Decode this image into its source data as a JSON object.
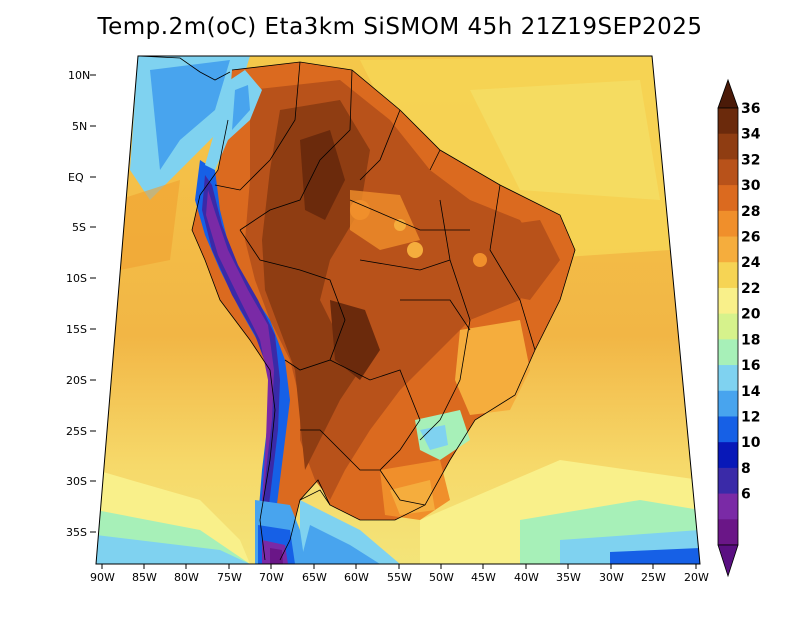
{
  "title": "Temp.2m(oC) Eta3km SiSMOM 45h 21Z19SEP2025",
  "map": {
    "lat_labels": [
      "10N",
      "5N",
      "EQ",
      "5S",
      "10S",
      "15S",
      "20S",
      "25S",
      "30S",
      "35S"
    ],
    "lon_labels": [
      "90W",
      "85W",
      "80W",
      "75W",
      "70W",
      "65W",
      "60W",
      "55W",
      "50W",
      "45W",
      "40W",
      "35W",
      "30W",
      "25W",
      "20W"
    ]
  },
  "colorbar": {
    "labels": [
      "36",
      "34",
      "32",
      "30",
      "28",
      "26",
      "24",
      "22",
      "20",
      "18",
      "16",
      "14",
      "12",
      "10",
      "8",
      "6"
    ],
    "colors": [
      "#6b2a0c",
      "#8f3d12",
      "#b8521a",
      "#db6a1f",
      "#f08f2b",
      "#f5ad3d",
      "#f6d454",
      "#f9f08a",
      "#d6f28c",
      "#a7f0b8",
      "#7fd2f0",
      "#48a4ee",
      "#1660e6",
      "#0818b8",
      "#3a2aa8",
      "#7a2aa6",
      "#6a1687"
    ],
    "top_color": "#4a1a08",
    "bottom_color": "#5a0f82"
  }
}
